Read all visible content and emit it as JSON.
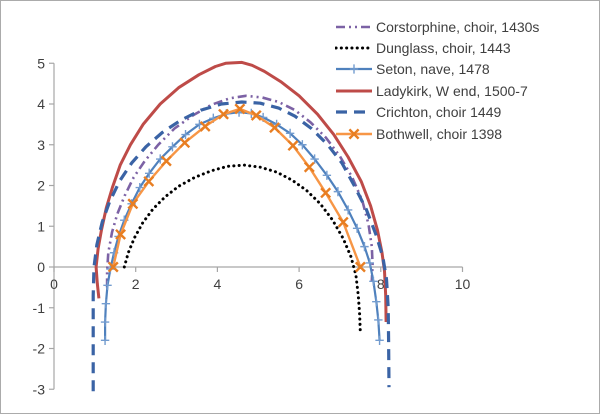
{
  "chart_data": {
    "type": "line",
    "title": "",
    "xlabel": "",
    "ylabel": "",
    "xlim": [
      0,
      10
    ],
    "ylim": [
      -3,
      5
    ],
    "xticks": [
      0,
      2,
      4,
      6,
      8,
      10
    ],
    "yticks": [
      5,
      4,
      3,
      2,
      1,
      0,
      -1,
      -2,
      -3
    ],
    "grid": false,
    "legend_position": "top-right",
    "axis_color": "#a6a6a6",
    "label_color": "#3f3f3f",
    "series": [
      {
        "key": "corstorphine",
        "name": "Corstorphine, choir, 1430s",
        "color": "#7c62a5",
        "line": "dash-dot-dot",
        "width": 2.6,
        "marker": "none",
        "points": [
          [
            1.3,
            -0.5
          ],
          [
            1.3,
            -0.1
          ],
          [
            1.33,
            0.35
          ],
          [
            1.42,
            0.85
          ],
          [
            1.55,
            1.3
          ],
          [
            1.73,
            1.75
          ],
          [
            1.95,
            2.2
          ],
          [
            2.22,
            2.6
          ],
          [
            2.55,
            3.0
          ],
          [
            2.95,
            3.4
          ],
          [
            3.4,
            3.72
          ],
          [
            3.85,
            3.98
          ],
          [
            4.3,
            4.14
          ],
          [
            4.7,
            4.2
          ],
          [
            5.1,
            4.16
          ],
          [
            5.5,
            4.05
          ],
          [
            5.9,
            3.85
          ],
          [
            6.28,
            3.55
          ],
          [
            6.65,
            3.18
          ],
          [
            7.0,
            2.72
          ],
          [
            7.3,
            2.2
          ],
          [
            7.55,
            1.62
          ],
          [
            7.7,
            1.05
          ],
          [
            7.78,
            0.5
          ],
          [
            7.8,
            0.05
          ],
          [
            7.78,
            -0.35
          ]
        ]
      },
      {
        "key": "dunglass",
        "name": "Dunglass, choir, 1443",
        "color": "#000000",
        "line": "dotted",
        "width": 3,
        "marker": "none",
        "points": [
          [
            1.72,
            0.0
          ],
          [
            1.82,
            0.35
          ],
          [
            1.97,
            0.72
          ],
          [
            2.17,
            1.08
          ],
          [
            2.42,
            1.42
          ],
          [
            2.72,
            1.72
          ],
          [
            3.05,
            1.98
          ],
          [
            3.45,
            2.2
          ],
          [
            3.85,
            2.36
          ],
          [
            4.25,
            2.47
          ],
          [
            4.65,
            2.5
          ],
          [
            5.05,
            2.45
          ],
          [
            5.45,
            2.33
          ],
          [
            5.83,
            2.13
          ],
          [
            6.18,
            1.88
          ],
          [
            6.52,
            1.55
          ],
          [
            6.82,
            1.15
          ],
          [
            7.08,
            0.7
          ],
          [
            7.27,
            0.25
          ],
          [
            7.39,
            -0.2
          ],
          [
            7.45,
            -0.7
          ],
          [
            7.48,
            -1.15
          ],
          [
            7.5,
            -1.65
          ]
        ]
      },
      {
        "key": "seton",
        "name": "Seton, nave, 1478",
        "color": "#4f81bd",
        "line": "solid",
        "width": 2.2,
        "marker": "plus",
        "marker_color": "#739ccf",
        "points": [
          [
            1.25,
            -1.8
          ],
          [
            1.25,
            -1.35
          ],
          [
            1.27,
            -0.9
          ],
          [
            1.31,
            -0.45
          ],
          [
            1.38,
            -0.05
          ],
          [
            1.47,
            0.35
          ],
          [
            1.58,
            0.75
          ],
          [
            1.72,
            1.15
          ],
          [
            1.9,
            1.55
          ],
          [
            2.1,
            1.95
          ],
          [
            2.33,
            2.3
          ],
          [
            2.6,
            2.65
          ],
          [
            2.9,
            2.95
          ],
          [
            3.22,
            3.25
          ],
          [
            3.56,
            3.5
          ],
          [
            3.9,
            3.65
          ],
          [
            4.22,
            3.76
          ],
          [
            4.53,
            3.8
          ],
          [
            4.83,
            3.77
          ],
          [
            5.12,
            3.67
          ],
          [
            5.45,
            3.5
          ],
          [
            5.78,
            3.28
          ],
          [
            6.08,
            3.0
          ],
          [
            6.38,
            2.65
          ],
          [
            6.68,
            2.25
          ],
          [
            6.95,
            1.85
          ],
          [
            7.2,
            1.4
          ],
          [
            7.42,
            0.95
          ],
          [
            7.6,
            0.5
          ],
          [
            7.73,
            0.1
          ],
          [
            7.82,
            -0.35
          ],
          [
            7.89,
            -0.85
          ],
          [
            7.94,
            -1.3
          ],
          [
            7.97,
            -1.8
          ]
        ]
      },
      {
        "key": "ladykirk",
        "name": "Ladykirk, W end, 1500-7",
        "color": "#be4b48",
        "line": "solid",
        "width": 3,
        "marker": "none",
        "points": [
          [
            1.1,
            -0.77
          ],
          [
            1.06,
            -0.4
          ],
          [
            1.03,
            0.0
          ],
          [
            1.08,
            0.45
          ],
          [
            1.16,
            0.9
          ],
          [
            1.28,
            1.45
          ],
          [
            1.43,
            1.95
          ],
          [
            1.62,
            2.5
          ],
          [
            1.87,
            3.0
          ],
          [
            2.18,
            3.5
          ],
          [
            2.6,
            4.0
          ],
          [
            3.05,
            4.4
          ],
          [
            3.55,
            4.72
          ],
          [
            3.95,
            4.92
          ],
          [
            4.2,
            5.0
          ],
          [
            4.6,
            5.02
          ],
          [
            4.85,
            4.95
          ],
          [
            5.15,
            4.8
          ],
          [
            5.55,
            4.55
          ],
          [
            6.0,
            4.2
          ],
          [
            6.45,
            3.75
          ],
          [
            6.85,
            3.25
          ],
          [
            7.2,
            2.7
          ],
          [
            7.52,
            2.1
          ],
          [
            7.75,
            1.5
          ],
          [
            7.92,
            0.9
          ],
          [
            8.03,
            0.35
          ],
          [
            8.09,
            -0.1
          ],
          [
            8.12,
            -0.7
          ],
          [
            8.13,
            -1.35
          ]
        ]
      },
      {
        "key": "crichton",
        "name": "Crichton, choir 1449",
        "color": "#3a63a5",
        "line": "dashed",
        "width": 3.2,
        "marker": "none",
        "points": [
          [
            0.96,
            -3.05
          ],
          [
            0.96,
            -2.3
          ],
          [
            0.96,
            -1.5
          ],
          [
            0.96,
            -0.7
          ],
          [
            0.98,
            0.0
          ],
          [
            1.05,
            0.55
          ],
          [
            1.18,
            1.1
          ],
          [
            1.36,
            1.6
          ],
          [
            1.6,
            2.1
          ],
          [
            1.9,
            2.55
          ],
          [
            2.25,
            2.95
          ],
          [
            2.65,
            3.3
          ],
          [
            3.1,
            3.6
          ],
          [
            3.6,
            3.85
          ],
          [
            4.1,
            4.0
          ],
          [
            4.6,
            4.05
          ],
          [
            5.05,
            4.02
          ],
          [
            5.5,
            3.9
          ],
          [
            5.9,
            3.7
          ],
          [
            6.3,
            3.4
          ],
          [
            6.7,
            3.0
          ],
          [
            7.05,
            2.55
          ],
          [
            7.35,
            2.0
          ],
          [
            7.65,
            1.4
          ],
          [
            7.88,
            0.8
          ],
          [
            8.05,
            0.25
          ],
          [
            8.14,
            -0.3
          ],
          [
            8.18,
            -1.0
          ],
          [
            8.19,
            -1.8
          ],
          [
            8.2,
            -2.95
          ]
        ]
      },
      {
        "key": "bothwell",
        "name": "Bothwell, choir 1398",
        "color": "#f79646",
        "line": "solid",
        "width": 2.4,
        "marker": "x",
        "marker_color": "#e87e22",
        "points": [
          [
            1.45,
            0.0
          ],
          [
            1.63,
            0.8
          ],
          [
            1.93,
            1.55
          ],
          [
            2.32,
            2.1
          ],
          [
            2.75,
            2.6
          ],
          [
            3.2,
            3.05
          ],
          [
            3.7,
            3.45
          ],
          [
            4.15,
            3.75
          ],
          [
            4.55,
            3.88
          ],
          [
            4.95,
            3.72
          ],
          [
            5.4,
            3.42
          ],
          [
            5.85,
            2.98
          ],
          [
            6.25,
            2.45
          ],
          [
            6.65,
            1.82
          ],
          [
            7.08,
            1.1
          ],
          [
            7.5,
            0.0
          ]
        ]
      }
    ]
  }
}
